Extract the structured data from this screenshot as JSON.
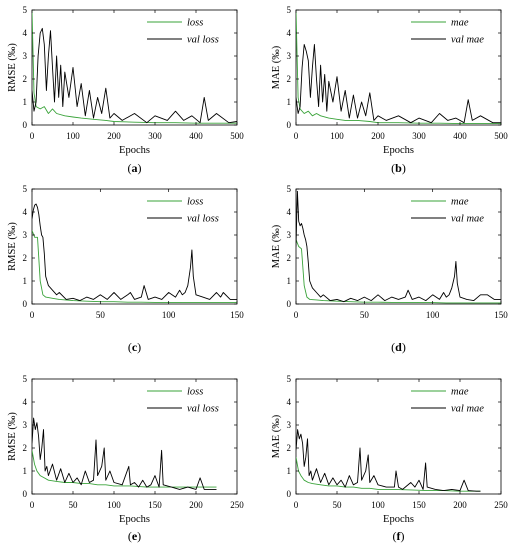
{
  "colors": {
    "train": "#3aa33a",
    "val": "#000000",
    "axis": "#000000"
  },
  "chart_data": [
    {
      "panel": "(a)",
      "panel_letter": "a",
      "type": "line",
      "xlabel": "Epochs",
      "ylabel": "RMSE (‰)",
      "xlim": [
        0,
        500
      ],
      "ylim": [
        0,
        5
      ],
      "xticks": [
        0,
        100,
        200,
        300,
        400,
        500
      ],
      "yticks": [
        0,
        1,
        2,
        3,
        4,
        5
      ],
      "legend_position": "top-right",
      "series": [
        {
          "name": "loss",
          "role": "train",
          "x": [
            0,
            5,
            10,
            20,
            30,
            40,
            50,
            60,
            80,
            100,
            120,
            150,
            180,
            200,
            250,
            300,
            350,
            400,
            450,
            500
          ],
          "values": [
            5,
            1.4,
            0.8,
            0.7,
            0.8,
            0.5,
            0.7,
            0.5,
            0.4,
            0.35,
            0.3,
            0.25,
            0.2,
            0.15,
            0.12,
            0.1,
            0.1,
            0.08,
            0.08,
            0.08
          ]
        },
        {
          "name": "val loss",
          "role": "val",
          "x": [
            0,
            5,
            10,
            15,
            20,
            25,
            30,
            35,
            40,
            45,
            50,
            55,
            60,
            65,
            70,
            75,
            80,
            90,
            100,
            110,
            120,
            130,
            140,
            150,
            160,
            170,
            180,
            190,
            200,
            220,
            250,
            280,
            300,
            330,
            350,
            370,
            390,
            410,
            420,
            430,
            450,
            480,
            500
          ],
          "values": [
            1.5,
            0.6,
            1.0,
            3.0,
            4.0,
            4.2,
            3.5,
            1.5,
            3.0,
            4.1,
            2.5,
            1.0,
            3.0,
            1.2,
            2.6,
            0.8,
            2.3,
            1.2,
            2.5,
            0.8,
            1.8,
            0.4,
            1.5,
            0.3,
            1.2,
            0.5,
            1.6,
            0.3,
            0.5,
            0.2,
            0.5,
            0.1,
            0.4,
            0.2,
            0.6,
            0.2,
            0.4,
            0.1,
            1.2,
            0.2,
            0.5,
            0.1,
            0.15
          ]
        }
      ]
    },
    {
      "panel": "(b)",
      "panel_letter": "b",
      "type": "line",
      "xlabel": "Epochs",
      "ylabel": "MAE (‰)",
      "xlim": [
        0,
        500
      ],
      "ylim": [
        0,
        5
      ],
      "xticks": [
        0,
        100,
        200,
        300,
        400,
        500
      ],
      "yticks": [
        0,
        1,
        2,
        3,
        4,
        5
      ],
      "legend_position": "top-right",
      "series": [
        {
          "name": "mae",
          "role": "train",
          "x": [
            0,
            5,
            10,
            20,
            30,
            40,
            50,
            60,
            80,
            100,
            120,
            150,
            180,
            200,
            250,
            300,
            350,
            400,
            450,
            500
          ],
          "values": [
            5,
            1.2,
            0.7,
            0.5,
            0.6,
            0.4,
            0.5,
            0.4,
            0.3,
            0.25,
            0.2,
            0.2,
            0.15,
            0.1,
            0.1,
            0.08,
            0.08,
            0.06,
            0.06,
            0.06
          ]
        },
        {
          "name": "val mae",
          "role": "val",
          "x": [
            0,
            5,
            10,
            15,
            20,
            25,
            30,
            35,
            40,
            45,
            50,
            55,
            60,
            65,
            70,
            75,
            80,
            90,
            100,
            110,
            120,
            130,
            140,
            150,
            160,
            170,
            180,
            190,
            200,
            220,
            250,
            280,
            300,
            330,
            350,
            370,
            390,
            410,
            420,
            430,
            450,
            480,
            500
          ],
          "values": [
            1.2,
            0.5,
            0.8,
            2.5,
            3.5,
            3.2,
            2.8,
            1.2,
            2.5,
            3.5,
            2.0,
            0.8,
            2.6,
            1.0,
            2.2,
            0.6,
            1.9,
            1.0,
            2.1,
            0.6,
            1.5,
            0.3,
            1.3,
            0.3,
            1.0,
            0.4,
            1.4,
            0.2,
            0.4,
            0.2,
            0.4,
            0.1,
            0.3,
            0.1,
            0.5,
            0.2,
            0.3,
            0.1,
            1.1,
            0.2,
            0.4,
            0.1,
            0.1
          ]
        }
      ]
    },
    {
      "panel": "(c)",
      "panel_letter": "c",
      "type": "line",
      "xlabel": "",
      "ylabel": "RMSE (‰)",
      "xlim": [
        0,
        150
      ],
      "ylim": [
        0,
        5
      ],
      "xticks": [
        0,
        50,
        100,
        150
      ],
      "yticks": [
        0,
        1,
        2,
        3,
        4,
        5
      ],
      "legend_position": "top-right",
      "series": [
        {
          "name": "loss",
          "role": "train",
          "x": [
            0,
            2,
            4,
            6,
            8,
            10,
            15,
            20,
            30,
            40,
            50,
            60,
            70,
            80,
            90,
            100,
            110,
            120,
            130,
            140,
            150
          ],
          "values": [
            3.2,
            2.9,
            2.9,
            1.0,
            0.4,
            0.3,
            0.25,
            0.2,
            0.15,
            0.12,
            0.1,
            0.1,
            0.08,
            0.08,
            0.07,
            0.07,
            0.06,
            0.06,
            0.06,
            0.06,
            0.06
          ]
        },
        {
          "name": "val loss",
          "role": "val",
          "x": [
            0,
            1,
            2,
            3,
            4,
            5,
            6,
            7,
            8,
            9,
            10,
            12,
            15,
            18,
            20,
            25,
            30,
            35,
            40,
            45,
            50,
            55,
            60,
            65,
            70,
            72,
            75,
            80,
            82,
            85,
            90,
            95,
            100,
            105,
            108,
            110,
            112,
            114,
            116,
            117,
            118,
            120,
            125,
            130,
            135,
            138,
            140,
            145,
            150
          ],
          "values": [
            3.7,
            4.1,
            4.3,
            4.35,
            4.2,
            3.9,
            3.4,
            3.0,
            2.9,
            2.2,
            1.2,
            0.8,
            0.6,
            0.4,
            0.5,
            0.2,
            0.25,
            0.15,
            0.3,
            0.2,
            0.4,
            0.2,
            0.5,
            0.2,
            0.4,
            0.5,
            0.2,
            0.3,
            0.8,
            0.2,
            0.3,
            0.2,
            0.5,
            0.3,
            0.6,
            0.4,
            0.5,
            0.8,
            1.6,
            2.35,
            1.2,
            0.4,
            0.3,
            0.2,
            0.5,
            0.3,
            0.5,
            0.2,
            0.2
          ]
        }
      ]
    },
    {
      "panel": "(d)",
      "panel_letter": "d",
      "type": "line",
      "xlabel": "",
      "ylabel": "MAE (‰)",
      "xlim": [
        0,
        150
      ],
      "ylim": [
        0,
        5
      ],
      "xticks": [
        0,
        50,
        100,
        150
      ],
      "yticks": [
        0,
        1,
        2,
        3,
        4,
        5
      ],
      "legend_position": "top-right",
      "series": [
        {
          "name": "mae",
          "role": "train",
          "x": [
            0,
            2,
            4,
            6,
            8,
            10,
            15,
            20,
            30,
            40,
            50,
            60,
            70,
            80,
            90,
            100,
            110,
            120,
            130,
            140,
            150
          ],
          "values": [
            2.8,
            2.5,
            2.4,
            0.8,
            0.3,
            0.2,
            0.18,
            0.15,
            0.12,
            0.1,
            0.08,
            0.08,
            0.07,
            0.07,
            0.06,
            0.06,
            0.05,
            0.05,
            0.05,
            0.05,
            0.05
          ]
        },
        {
          "name": "val mae",
          "role": "val",
          "x": [
            0,
            1,
            2,
            3,
            4,
            5,
            6,
            7,
            8,
            9,
            10,
            12,
            15,
            18,
            20,
            25,
            30,
            35,
            40,
            45,
            50,
            55,
            60,
            65,
            70,
            75,
            80,
            82,
            85,
            90,
            95,
            100,
            105,
            108,
            110,
            112,
            114,
            116,
            117,
            118,
            120,
            125,
            130,
            135,
            140,
            145,
            150
          ],
          "values": [
            2.5,
            4.9,
            3.6,
            3.4,
            3.5,
            3.3,
            3.0,
            2.8,
            2.5,
            1.8,
            1.0,
            0.7,
            0.5,
            0.3,
            0.4,
            0.15,
            0.2,
            0.1,
            0.25,
            0.15,
            0.3,
            0.15,
            0.4,
            0.15,
            0.3,
            0.2,
            0.3,
            0.6,
            0.2,
            0.3,
            0.15,
            0.4,
            0.2,
            0.5,
            0.3,
            0.4,
            0.7,
            1.2,
            1.85,
            0.9,
            0.3,
            0.2,
            0.15,
            0.4,
            0.4,
            0.2,
            0.2
          ]
        }
      ]
    },
    {
      "panel": "(e)",
      "panel_letter": "e",
      "type": "line",
      "xlabel": "Epochs",
      "ylabel": "RMSE (‰)",
      "xlim": [
        0,
        250
      ],
      "ylim": [
        0,
        5
      ],
      "xticks": [
        0,
        50,
        100,
        150,
        200,
        250
      ],
      "yticks": [
        0,
        1,
        2,
        3,
        4,
        5
      ],
      "legend_position": "top-right",
      "series": [
        {
          "name": "loss",
          "role": "train",
          "x": [
            0,
            3,
            6,
            10,
            15,
            20,
            30,
            40,
            50,
            60,
            70,
            80,
            90,
            100,
            120,
            140,
            160,
            180,
            200,
            225
          ],
          "values": [
            1.9,
            1.3,
            1.0,
            0.8,
            0.7,
            0.6,
            0.55,
            0.5,
            0.5,
            0.45,
            0.45,
            0.4,
            0.4,
            0.35,
            0.35,
            0.3,
            0.3,
            0.3,
            0.3,
            0.3
          ]
        },
        {
          "name": "val loss",
          "role": "val",
          "x": [
            0,
            2,
            4,
            6,
            8,
            10,
            12,
            14,
            16,
            18,
            20,
            25,
            30,
            35,
            40,
            45,
            50,
            55,
            60,
            65,
            70,
            75,
            78,
            80,
            85,
            88,
            90,
            95,
            100,
            110,
            118,
            120,
            125,
            130,
            135,
            140,
            145,
            150,
            155,
            158,
            160,
            170,
            180,
            190,
            200,
            205,
            210,
            220,
            225
          ],
          "values": [
            2.2,
            3.3,
            2.8,
            3.1,
            2.5,
            1.5,
            2.0,
            2.8,
            1.0,
            1.2,
            0.8,
            1.3,
            0.6,
            1.1,
            0.5,
            0.9,
            0.5,
            0.7,
            0.4,
            1.0,
            0.5,
            0.6,
            2.35,
            0.8,
            1.2,
            2.0,
            0.6,
            1.0,
            0.5,
            0.4,
            1.2,
            0.4,
            0.5,
            0.3,
            0.6,
            0.3,
            0.4,
            0.8,
            0.3,
            1.9,
            0.4,
            0.3,
            0.2,
            0.3,
            0.2,
            0.7,
            0.2,
            0.2,
            0.2
          ]
        }
      ]
    },
    {
      "panel": "(f)",
      "panel_letter": "f",
      "type": "line",
      "xlabel": "Epochs",
      "ylabel": "MAE (‰)",
      "xlim": [
        0,
        250
      ],
      "ylim": [
        0,
        5
      ],
      "xticks": [
        0,
        50,
        100,
        150,
        200,
        250
      ],
      "yticks": [
        0,
        1,
        2,
        3,
        4,
        5
      ],
      "legend_position": "top-right",
      "series": [
        {
          "name": "mae",
          "role": "train",
          "x": [
            0,
            3,
            6,
            10,
            15,
            20,
            30,
            40,
            50,
            60,
            70,
            80,
            90,
            100,
            120,
            140,
            160,
            180,
            200,
            225
          ],
          "values": [
            1.6,
            1.0,
            0.8,
            0.6,
            0.5,
            0.45,
            0.4,
            0.35,
            0.35,
            0.3,
            0.3,
            0.25,
            0.25,
            0.2,
            0.2,
            0.18,
            0.15,
            0.15,
            0.12,
            0.12
          ]
        },
        {
          "name": "val mae",
          "role": "val",
          "x": [
            0,
            2,
            4,
            6,
            8,
            10,
            12,
            14,
            16,
            18,
            20,
            25,
            30,
            35,
            40,
            45,
            50,
            55,
            60,
            65,
            70,
            75,
            78,
            80,
            85,
            88,
            90,
            95,
            100,
            110,
            120,
            122,
            125,
            130,
            140,
            145,
            150,
            155,
            158,
            160,
            170,
            180,
            190,
            200,
            205,
            210,
            220,
            225
          ],
          "values": [
            1.9,
            2.8,
            2.4,
            2.6,
            2.2,
            1.2,
            1.6,
            2.4,
            0.8,
            1.0,
            0.6,
            1.1,
            0.5,
            0.9,
            0.4,
            0.7,
            0.4,
            0.6,
            0.3,
            0.8,
            0.4,
            0.5,
            2.0,
            0.6,
            1.0,
            1.7,
            0.5,
            0.8,
            0.4,
            0.3,
            0.3,
            1.0,
            0.3,
            0.2,
            0.5,
            0.3,
            0.6,
            0.2,
            1.35,
            0.3,
            0.2,
            0.15,
            0.2,
            0.15,
            0.6,
            0.15,
            0.12,
            0.12
          ]
        }
      ]
    }
  ]
}
